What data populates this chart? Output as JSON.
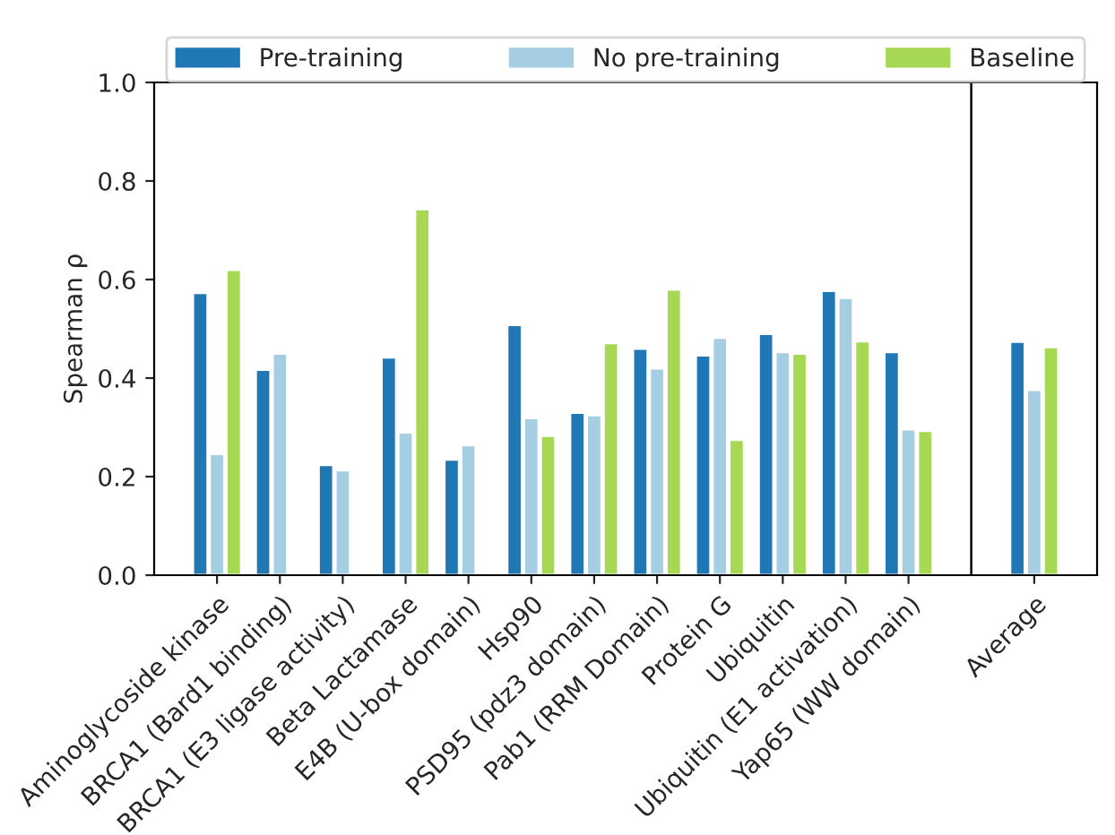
{
  "chart_data": [
    {
      "type": "bar",
      "ylabel": "Spearman ρ",
      "categories": [
        "Aminoglycoside kinase",
        "BRCA1 (Bard1 binding)",
        "BRCA1 (E3 ligase activity)",
        "Beta Lactamase",
        "E4B (U-box domain)",
        "Hsp90",
        "PSD95 (pdz3 domain)",
        "Pab1 (RRM Domain)",
        "Protein G",
        "Ubiquitin",
        "Ubiquitin (E1 activation)",
        "Yap65 (WW domain)"
      ],
      "series": [
        {
          "name": "Pre-training",
          "color": "#1f77b4",
          "values": [
            0.573,
            0.417,
            0.224,
            0.442,
            0.235,
            0.508,
            0.33,
            0.46,
            0.446,
            0.49,
            0.577,
            0.453
          ]
        },
        {
          "name": "No pre-training",
          "color": "#a6cee3",
          "values": [
            0.246,
            0.45,
            0.213,
            0.29,
            0.264,
            0.319,
            0.325,
            0.42,
            0.482,
            0.453,
            0.563,
            0.296
          ]
        },
        {
          "name": "Baseline",
          "color": "#a6d854",
          "values": [
            0.62,
            null,
            null,
            0.743,
            null,
            0.283,
            0.471,
            0.58,
            0.275,
            0.45,
            0.475,
            0.293
          ]
        }
      ],
      "ylim": [
        0,
        1
      ],
      "yticks": [
        {
          "value": 0,
          "label": "0.0"
        },
        0.2,
        0.4,
        0.6,
        0.8,
        {
          "value": 1,
          "label": "1.0"
        }
      ],
      "legend": "top",
      "grid": false
    },
    {
      "type": "bar",
      "categories": [
        "Average"
      ],
      "series": [
        {
          "color": "#1f77b4",
          "values": [
            0.474
          ]
        },
        {
          "color": "#a6cee3",
          "values": [
            0.376
          ]
        },
        {
          "color": "#a6d854",
          "values": [
            0.463
          ]
        }
      ],
      "ylim": [
        0,
        1
      ],
      "tick_labels": "x",
      "grid": false
    }
  ]
}
